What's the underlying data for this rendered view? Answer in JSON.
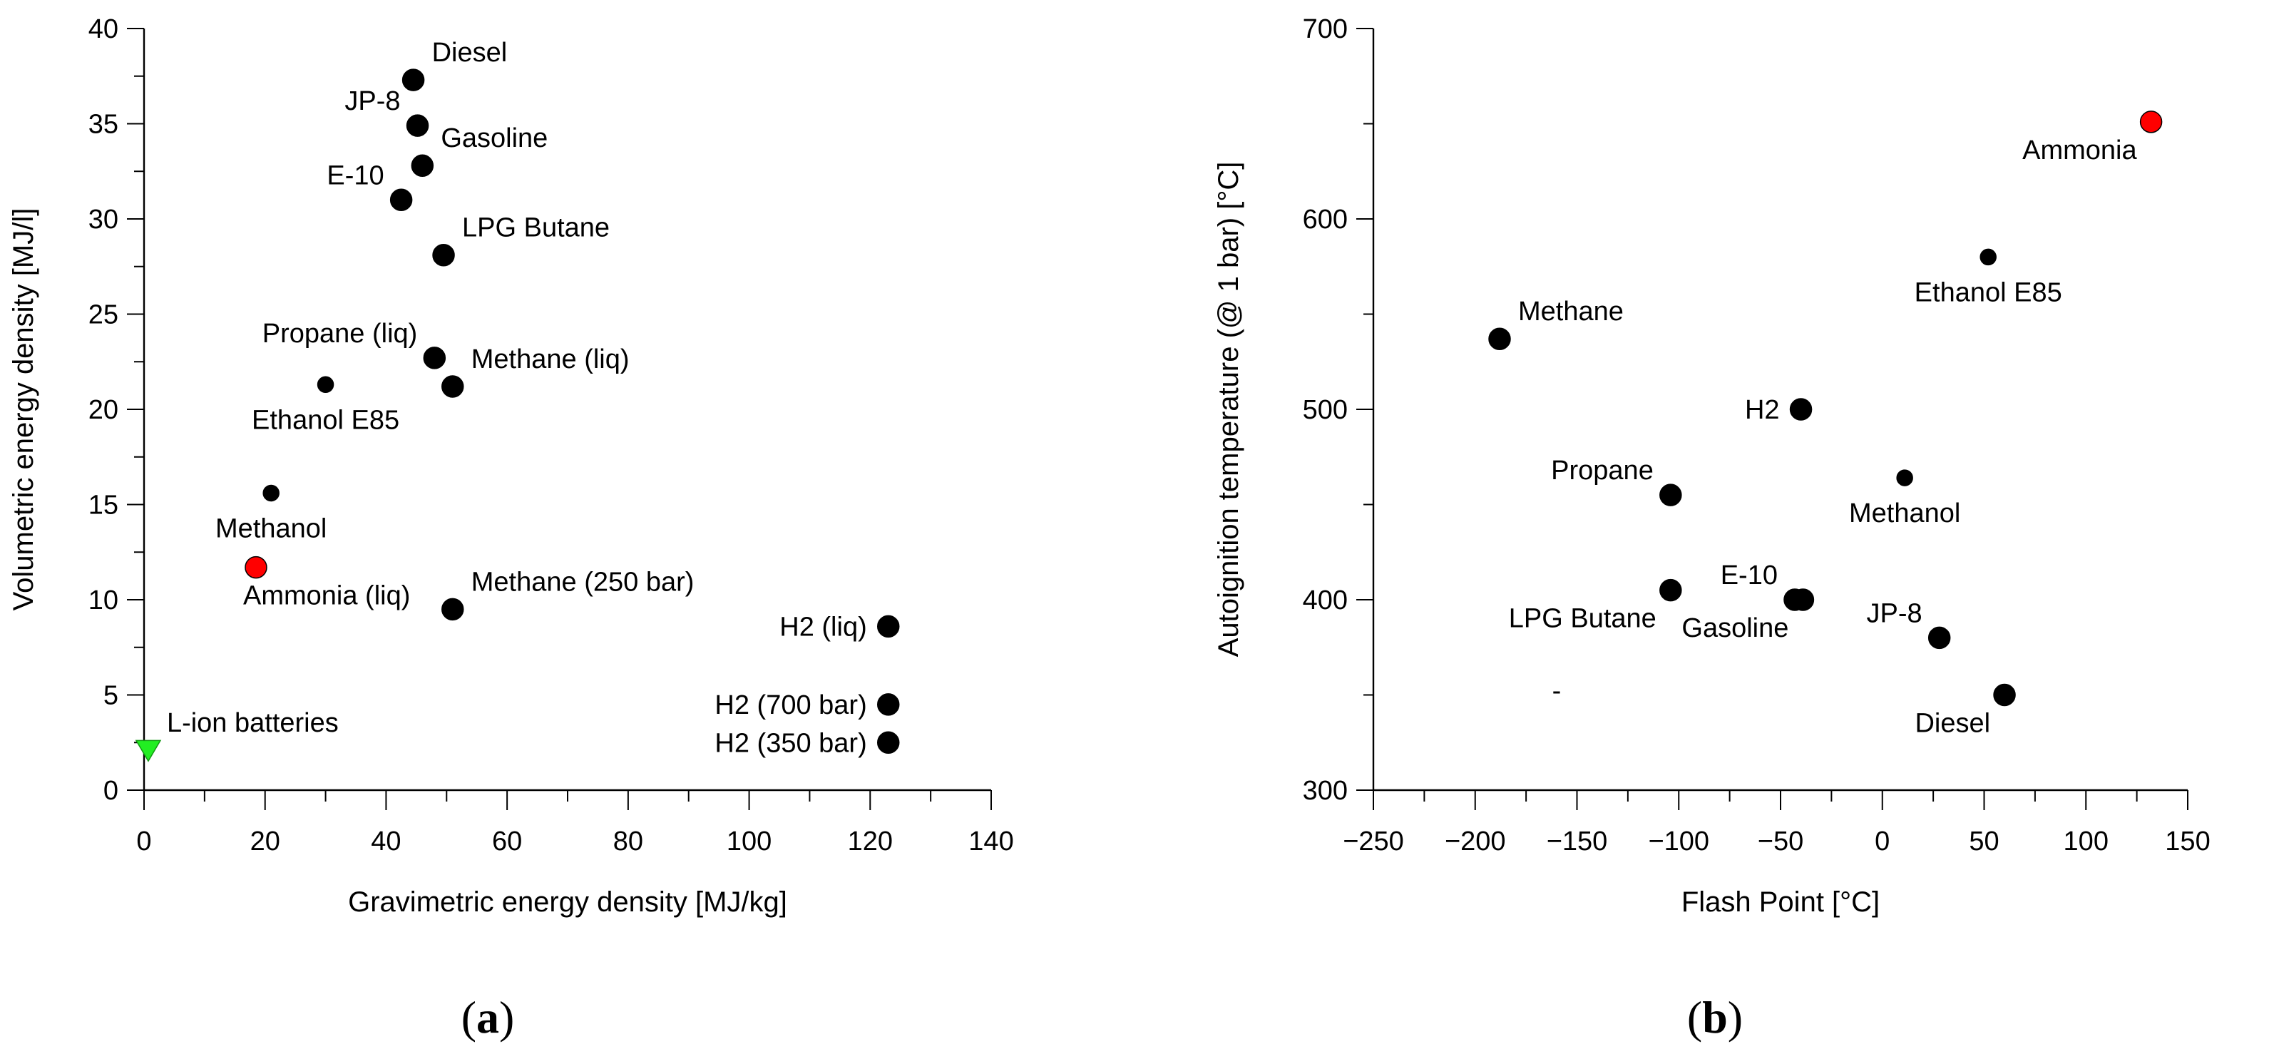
{
  "chart_data": [
    {
      "type": "scatter",
      "panel_label": {
        "open": "(",
        "letter": "a",
        "close": ")"
      },
      "xlabel": "Gravimetric energy density [MJ/kg]",
      "ylabel": "Volumetric energy density [MJ/l]",
      "xlim": [
        0,
        140
      ],
      "ylim": [
        0,
        40
      ],
      "xticks": [
        0,
        20,
        40,
        60,
        80,
        100,
        120,
        140
      ],
      "yticks": [
        0,
        5,
        10,
        15,
        20,
        25,
        30,
        35,
        40
      ],
      "grid": false,
      "points": [
        {
          "label": "Diesel",
          "x": 44.5,
          "y": 37.3,
          "marker": "circle",
          "color": "#000000",
          "size": "large",
          "label_pos": "top-right"
        },
        {
          "label": "JP-8",
          "x": 45.2,
          "y": 34.9,
          "marker": "circle",
          "color": "#000000",
          "size": "large",
          "label_pos": "top-left"
        },
        {
          "label": "Gasoline",
          "x": 46.0,
          "y": 32.8,
          "marker": "circle",
          "color": "#000000",
          "size": "large",
          "label_pos": "top-right"
        },
        {
          "label": "E-10",
          "x": 42.5,
          "y": 31.0,
          "marker": "circle",
          "color": "#000000",
          "size": "large",
          "label_pos": "top-left"
        },
        {
          "label": "LPG Butane",
          "x": 49.5,
          "y": 28.1,
          "marker": "circle",
          "color": "#000000",
          "size": "large",
          "label_pos": "top-right"
        },
        {
          "label": "Propane (liq)",
          "x": 48.0,
          "y": 22.7,
          "marker": "circle",
          "color": "#000000",
          "size": "large",
          "label_pos": "top-left"
        },
        {
          "label": "Methane (liq)",
          "x": 51.0,
          "y": 21.2,
          "marker": "circle",
          "color": "#000000",
          "size": "large",
          "label_pos": "top-right"
        },
        {
          "label": "Ethanol E85",
          "x": 30.0,
          "y": 21.3,
          "marker": "circle",
          "color": "#000000",
          "size": "small",
          "label_pos": "bottom"
        },
        {
          "label": "Methanol",
          "x": 21.0,
          "y": 15.6,
          "marker": "circle",
          "color": "#000000",
          "size": "small",
          "label_pos": "bottom"
        },
        {
          "label": "Ammonia (liq)",
          "x": 18.5,
          "y": 11.7,
          "marker": "circle",
          "color": "#ff0000",
          "size": "large",
          "label_pos": "bottom-right"
        },
        {
          "label": "Methane (250 bar)",
          "x": 51.0,
          "y": 9.5,
          "marker": "circle",
          "color": "#000000",
          "size": "large",
          "label_pos": "top-right"
        },
        {
          "label": "H2 (liq)",
          "x": 123.0,
          "y": 8.6,
          "marker": "circle",
          "color": "#000000",
          "size": "large",
          "label_pos": "left"
        },
        {
          "label": "H2 (700 bar)",
          "x": 123.0,
          "y": 4.5,
          "marker": "circle",
          "color": "#000000",
          "size": "large",
          "label_pos": "left"
        },
        {
          "label": "H2 (350 bar)",
          "x": 123.0,
          "y": 2.5,
          "marker": "circle",
          "color": "#000000",
          "size": "large",
          "label_pos": "left"
        },
        {
          "label": "L-ion batteries",
          "x": 0.7,
          "y": 2.1,
          "marker": "triangle-down",
          "color": "#22ee22",
          "size": "large",
          "label_pos": "top-right"
        }
      ]
    },
    {
      "type": "scatter",
      "panel_label": {
        "open": "(",
        "letter": "b",
        "close": ")"
      },
      "xlabel": "Flash Point [°C]",
      "ylabel": "Autoignition temperature (@ 1 bar) [°C]",
      "xlim": [
        -250,
        150
      ],
      "ylim": [
        300,
        700
      ],
      "xticks": [
        -250,
        -200,
        -150,
        -100,
        -50,
        0,
        50,
        100,
        150
      ],
      "yticks": [
        300,
        400,
        500,
        600,
        700
      ],
      "grid": false,
      "stray_text": "-",
      "stray_text_pos": [
        -160,
        352
      ],
      "points": [
        {
          "label": "Ammonia",
          "x": 132,
          "y": 651,
          "marker": "circle",
          "color": "#ff0000",
          "size": "large",
          "label_pos": "bottom-left"
        },
        {
          "label": "Ethanol E85",
          "x": 52,
          "y": 580,
          "marker": "circle",
          "color": "#000000",
          "size": "small",
          "label_pos": "bottom"
        },
        {
          "label": "Methane",
          "x": -188,
          "y": 537,
          "marker": "circle",
          "color": "#000000",
          "size": "large",
          "label_pos": "top-right"
        },
        {
          "label": "H2",
          "x": -40,
          "y": 500,
          "marker": "circle",
          "color": "#000000",
          "size": "large",
          "label_pos": "left"
        },
        {
          "label": "Methanol",
          "x": 11,
          "y": 464,
          "marker": "circle",
          "color": "#000000",
          "size": "small",
          "label_pos": "bottom"
        },
        {
          "label": "Propane",
          "x": -104,
          "y": 455,
          "marker": "circle",
          "color": "#000000",
          "size": "large",
          "label_pos": "top-left"
        },
        {
          "label": "LPG Butane",
          "x": -104,
          "y": 405,
          "marker": "circle",
          "color": "#000000",
          "size": "large",
          "label_pos": "bottom-left"
        },
        {
          "label": "E-10",
          "x": -43,
          "y": 400,
          "marker": "circle",
          "color": "#000000",
          "size": "large",
          "label_pos": "top-left"
        },
        {
          "label": "Gasoline",
          "x": -39,
          "y": 400,
          "marker": "circle",
          "color": "#000000",
          "size": "large",
          "label_pos": "bottom-left"
        },
        {
          "label": "JP-8",
          "x": 28,
          "y": 380,
          "marker": "circle",
          "color": "#000000",
          "size": "large",
          "label_pos": "top-left"
        },
        {
          "label": "Diesel",
          "x": 60,
          "y": 350,
          "marker": "circle",
          "color": "#000000",
          "size": "large",
          "label_pos": "bottom-left"
        }
      ]
    }
  ]
}
